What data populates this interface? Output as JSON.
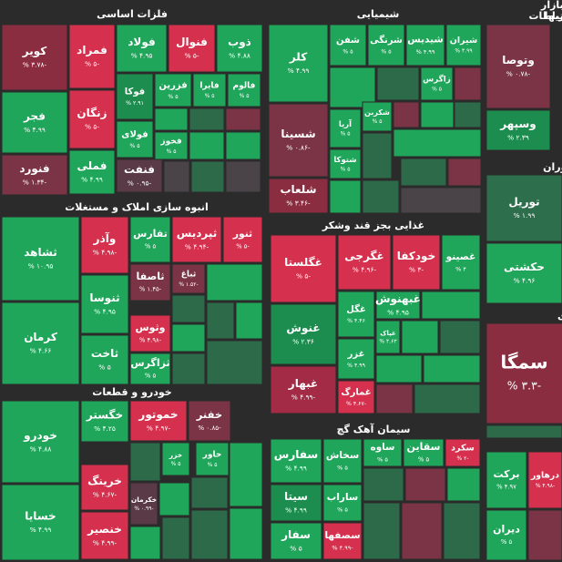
{
  "sectors": [
    {
      "title": "فلزات اساسی",
      "tiles": [
        {
          "name": "کویر",
          "change": "-۳.۷۸ %",
          "color": "#8b2d40"
        },
        {
          "name": "فجر",
          "change": "۴.۹۹ %",
          "color": "#1fa65a"
        },
        {
          "name": "فنورد",
          "change": "-۱.۳۴ %",
          "color": "#7a3446"
        },
        {
          "name": "فمراد",
          "change": "-۵ %",
          "color": "#d5304d"
        },
        {
          "name": "زنگان",
          "change": "-۵ %",
          "color": "#d5304d"
        },
        {
          "name": "فملی",
          "change": "۴.۹۹ %",
          "color": "#1fa65a"
        },
        {
          "name": "فولاد",
          "change": "۴.۹۵ %",
          "color": "#1fa65a"
        },
        {
          "name": "فوکا",
          "change": "۲.۹۱ %",
          "color": "#1c8d4e"
        },
        {
          "name": "فولای",
          "change": "۵ %",
          "color": "#1fa65a"
        },
        {
          "name": "فنفت",
          "change": "-۰.۹۵ %",
          "color": "#5a3a46"
        },
        {
          "name": "فنوال",
          "change": "-۵ %",
          "color": "#d5304d"
        },
        {
          "name": "فزرین",
          "change": "۵ %",
          "color": "#1fa65a"
        },
        {
          "name": "فایرا",
          "change": "۵ %",
          "color": "#1fa65a"
        },
        {
          "name": "فالوم",
          "change": "۵ %",
          "color": "#1fa65a"
        },
        {
          "name": "فخوز",
          "change": "۵ %",
          "color": "#1fa65a"
        },
        {
          "name": "ذوب",
          "change": "۴.۸۸ %",
          "color": "#1fa65a"
        }
      ]
    },
    {
      "title": "شیمیایی",
      "tiles": [
        {
          "name": "کلر",
          "change": "۴.۹۹ %",
          "color": "#1fa65a"
        },
        {
          "name": "شسینا",
          "change": "-۰.۸۶ %",
          "color": "#7a3446"
        },
        {
          "name": "شلعاب",
          "change": "-۳.۴۶ %",
          "color": "#8b2d40"
        },
        {
          "name": "شفن",
          "change": "۵ %",
          "color": "#1fa65a"
        },
        {
          "name": "شرنگی",
          "change": "۵ %",
          "color": "#1fa65a"
        },
        {
          "name": "شیدیس",
          "change": "۴.۹۹ %",
          "color": "#1fa65a"
        },
        {
          "name": "شیران",
          "change": "۴.۹۹ %",
          "color": "#1fa65a"
        },
        {
          "name": "زاگرس",
          "change": "۵ %",
          "color": "#1fa65a"
        },
        {
          "name": "شکربن",
          "change": "۵ %",
          "color": "#1fa65a"
        },
        {
          "name": "آریا",
          "change": "۵ %",
          "color": "#1fa65a"
        },
        {
          "name": "شتوکا",
          "change": "۵ %",
          "color": "#1fa65a"
        }
      ]
    },
    {
      "title": "انبوه سازی املاک و مستغلات",
      "tiles": [
        {
          "name": "ثشاهد",
          "change": "۱۰.۹۵ %",
          "color": "#1fa65a"
        },
        {
          "name": "کرمان",
          "change": "۴.۶۶ %",
          "color": "#1fa65a"
        },
        {
          "name": "وآذر",
          "change": "-۴.۹۸ %",
          "color": "#d5304d"
        },
        {
          "name": "ثنوسا",
          "change": "۴.۹۵ %",
          "color": "#1fa65a"
        },
        {
          "name": "ثاخت",
          "change": "۵ %",
          "color": "#1fa65a"
        },
        {
          "name": "تفارس",
          "change": "۵ %",
          "color": "#1fa65a"
        },
        {
          "name": "ثاصفا",
          "change": "-۱.۴۵ %",
          "color": "#7a3446"
        },
        {
          "name": "وثوس",
          "change": "-۴.۹۸ %",
          "color": "#d5304d"
        },
        {
          "name": "ثزاگرس",
          "change": "۵ %",
          "color": "#1fa65a"
        },
        {
          "name": "ثپردیس",
          "change": "-۴.۹۴ %",
          "color": "#d5304d"
        },
        {
          "name": "ثباغ",
          "change": "-۱.۵۲ %",
          "color": "#7a3446"
        },
        {
          "name": "ثنور",
          "change": "-۵ %",
          "color": "#d5304d"
        }
      ]
    },
    {
      "title": "خودرو و قطعات",
      "tiles": [
        {
          "name": "خودرو",
          "change": "۴.۸۸ %",
          "color": "#1fa65a"
        },
        {
          "name": "خسایا",
          "change": "۴.۹۹ %",
          "color": "#1fa65a"
        },
        {
          "name": "خگستر",
          "change": "۴.۲۵ %",
          "color": "#1fa65a"
        },
        {
          "name": "خرینگ",
          "change": "-۴.۶۷ %",
          "color": "#d5304d"
        },
        {
          "name": "خنصیر",
          "change": "-۴.۹۹ %",
          "color": "#d5304d"
        },
        {
          "name": "خموتور",
          "change": "-۴.۹۷ %",
          "color": "#d5304d"
        },
        {
          "name": "خزر",
          "change": "۵ %",
          "color": "#1fa65a"
        },
        {
          "name": "خکرمان",
          "change": "-۰.۹۹ %",
          "color": "#5a3a46"
        },
        {
          "name": "خفنر",
          "change": "-۰.۸۵ %",
          "color": "#7a3446"
        },
        {
          "name": "خاور",
          "change": "۵ %",
          "color": "#1fa65a"
        }
      ]
    },
    {
      "title": "غذایی بجز قند وشکر",
      "tiles": [
        {
          "name": "غگلستا",
          "change": "-۵ %",
          "color": "#d5304d"
        },
        {
          "name": "غنوش",
          "change": "۲.۳۶ %",
          "color": "#1c8d4e"
        },
        {
          "name": "غبهار",
          "change": "-۴.۹۹ %",
          "color": "#a32b45"
        },
        {
          "name": "غگرجی",
          "change": "-۴.۹۶ %",
          "color": "#d5304d"
        },
        {
          "name": "خودکفا",
          "change": "-۳ %",
          "color": "#d5304d"
        },
        {
          "name": "غصینو",
          "change": "۴ %",
          "color": "#1fa65a"
        },
        {
          "name": "غگل",
          "change": "۴.۴۶ %",
          "color": "#1fa65a"
        },
        {
          "name": "غبهنوش",
          "change": "۴.۹۵ %",
          "color": "#1fa65a"
        },
        {
          "name": "غپاک",
          "change": "۴.۶۳ %",
          "color": "#1fa65a"
        },
        {
          "name": "غزر",
          "change": "۴.۹۹ %",
          "color": "#1fa65a"
        },
        {
          "name": "غمارگ",
          "change": "-۴.۶۷ %",
          "color": "#d5304d"
        }
      ]
    },
    {
      "title": "سیمان آهک گچ",
      "tiles": [
        {
          "name": "سفارس",
          "change": "۴.۹۹ %",
          "color": "#1fa65a"
        },
        {
          "name": "سیتا",
          "change": "۴.۹۹ %",
          "color": "#1c8d4e"
        },
        {
          "name": "سفار",
          "change": "۵ %",
          "color": "#1fa65a"
        },
        {
          "name": "سخاش",
          "change": "۵ %",
          "color": "#1fa65a"
        },
        {
          "name": "ساراب",
          "change": "۵ %",
          "color": "#1fa65a"
        },
        {
          "name": "سصفها",
          "change": "-۴.۹۹ %",
          "color": "#d5304d"
        },
        {
          "name": "ساوه",
          "change": "۵ %",
          "color": "#1fa65a"
        },
        {
          "name": "سقاین",
          "change": "۵ %",
          "color": "#1fa65a"
        },
        {
          "name": "سکرد",
          "change": "-۲ %",
          "color": "#d5304d"
        }
      ]
    },
    {
      "title": "سه بازار",
      "subtitle": "گذاریها",
      "tiles": [
        {
          "name": "وتوصا",
          "change": "-۰.۷۸ %",
          "color": "#7a3446"
        },
        {
          "name": "وسپهر",
          "change": "۲.۳۹ %",
          "color": "#1c8d4e"
        }
      ]
    },
    {
      "title": "ی و ارتباطات",
      "tiles": [
        {
          "name": "توریل",
          "change": "۱.۹۹ %",
          "color": "#2d6e4c"
        },
        {
          "name": "حکشتی",
          "change": "۴.۹۶ %",
          "color": "#1fa65a"
        }
      ]
    },
    {
      "title": "ستوران",
      "tiles": [
        {
          "name": "سمگا",
          "change": "-۳.۳ %",
          "color": "#8b2d40"
        }
      ]
    },
    {
      "title": "ی",
      "tiles": [
        {
          "name": "برکت",
          "change": "۴.۹۷ %",
          "color": "#1fa65a"
        },
        {
          "name": "درهاور",
          "change": "-۴.۹۸ %",
          "color": "#d5304d"
        },
        {
          "name": "دیران",
          "change": "۵ %",
          "color": "#1fa65a"
        }
      ]
    }
  ]
}
